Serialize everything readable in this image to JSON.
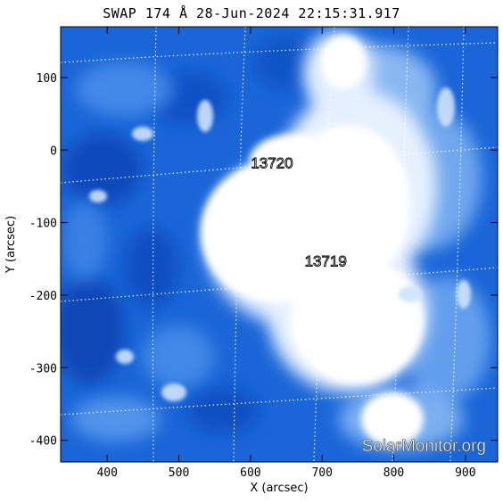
{
  "title": "SWAP 174 Å 28-Jun-2024 22:15:31.917",
  "xlabel": "X (arcsec)",
  "ylabel": "Y (arcsec)",
  "x_ticks": [
    400,
    500,
    600,
    700,
    800,
    900
  ],
  "y_ticks": [
    100,
    0,
    -100,
    -200,
    -300,
    -400
  ],
  "x_range": [
    335,
    945
  ],
  "y_range": [
    -430,
    170
  ],
  "regions": [
    {
      "label": "13720",
      "x": 630,
      "y": -25
    },
    {
      "label": "13719",
      "x": 705,
      "y": -160
    }
  ],
  "watermark": "SolarMonitor.org",
  "colors": {
    "background": "#0a5cd6",
    "bright": "#ffffff",
    "axis": "#000000"
  }
}
